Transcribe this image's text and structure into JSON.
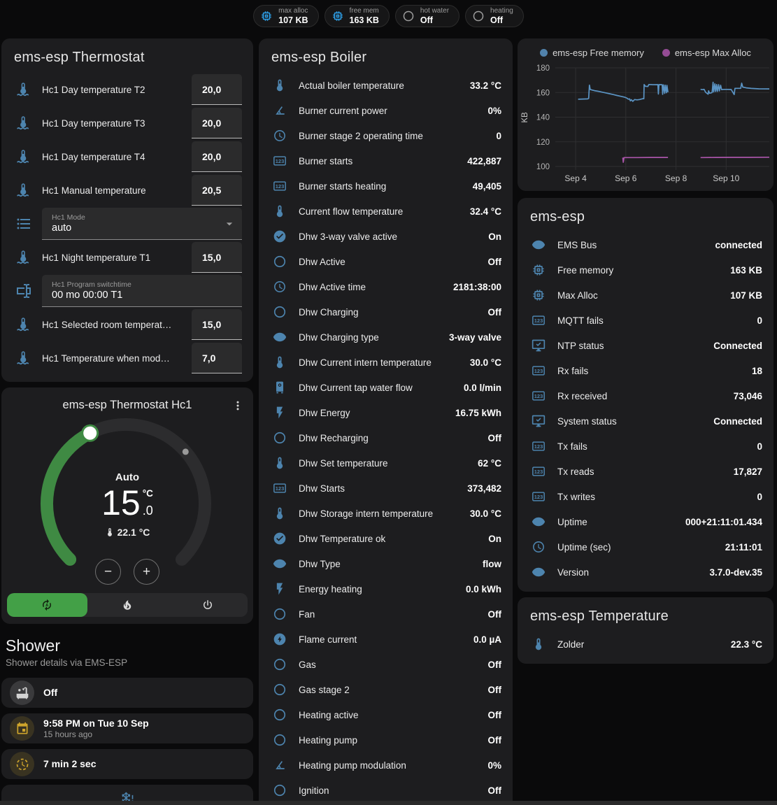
{
  "colors": {
    "icon_blue": "#4d84ae",
    "badge_blue": "#2d9fe8",
    "amber": "#cfa52c",
    "green": "#43a047",
    "arc_green": "#3f8a43",
    "chart_blue": "#5b94c4",
    "chart_purple": "#aa55aa"
  },
  "header": {
    "badges": [
      {
        "icon": "memory",
        "icon_color": "#2d9fe8",
        "label": "max alloc",
        "value": "107 KB"
      },
      {
        "icon": "memory",
        "icon_color": "#2d9fe8",
        "label": "free mem",
        "value": "163 KB"
      },
      {
        "icon": "circle",
        "icon_color": "#9e9e9e",
        "label": "hot water",
        "value": "Off"
      },
      {
        "icon": "circle",
        "icon_color": "#9e9e9e",
        "label": "heating",
        "value": "Off"
      }
    ]
  },
  "thermostat": {
    "title": "ems-esp Thermostat",
    "rows": [
      {
        "type": "number",
        "icon": "coolant-thermometer",
        "label": "Hc1 Day temperature T2",
        "value": "20,0"
      },
      {
        "type": "number",
        "icon": "coolant-thermometer",
        "label": "Hc1 Day temperature T3",
        "value": "20,0"
      },
      {
        "type": "number",
        "icon": "coolant-thermometer",
        "label": "Hc1 Day temperature T4",
        "value": "20,0"
      },
      {
        "type": "number",
        "icon": "coolant-thermometer",
        "label": "Hc1 Manual temperature",
        "value": "20,5"
      },
      {
        "type": "select",
        "icon": "format-list-bulleted",
        "label": "Hc1 Mode",
        "value": "auto"
      },
      {
        "type": "number",
        "icon": "coolant-thermometer",
        "label": "Hc1 Night temperature T1",
        "value": "15,0"
      },
      {
        "type": "textfield",
        "icon": "form-textbox",
        "label": "Hc1 Program switchtime",
        "value": "00 mo 00:00 T1"
      },
      {
        "type": "number",
        "icon": "coolant-thermometer",
        "label": "Hc1 Selected room temperat…",
        "value": "15,0"
      },
      {
        "type": "number",
        "icon": "coolant-thermometer",
        "label": "Hc1 Temperature when mod…",
        "value": "7,0"
      }
    ]
  },
  "dial": {
    "title": "ems-esp Thermostat Hc1",
    "mode_label": "Auto",
    "target_temp": "15",
    "target_decimal": ".0",
    "unit": "°C",
    "current_temp": "22.1 °C",
    "decrease_label": "−",
    "increase_label": "+",
    "modes": [
      {
        "icon": "auto-mode",
        "name": "auto",
        "active": true
      },
      {
        "icon": "fire",
        "name": "heat",
        "active": false
      },
      {
        "icon": "power",
        "name": "off",
        "active": false
      }
    ]
  },
  "shower": {
    "title": "Shower",
    "subtitle": "Shower details via EMS-ESP",
    "cards": [
      {
        "icon": "bathtub",
        "style": "gray",
        "text": "Off",
        "subtext": ""
      },
      {
        "icon": "calendar",
        "style": "amber",
        "text": "9:58 PM on Tue 10 Sep",
        "subtext": "15 hours ago"
      },
      {
        "icon": "progress-clock",
        "style": "amber",
        "text": "7 min 2 sec",
        "subtext": ""
      },
      {
        "icon": "snowflake-alert",
        "style": "center",
        "text": "",
        "subtext": ""
      }
    ]
  },
  "boiler": {
    "title": "ems-esp Boiler",
    "rows": [
      {
        "icon": "thermometer",
        "label": "Actual boiler temperature",
        "value": "33.2 °C"
      },
      {
        "icon": "gauge",
        "label": "Burner current power",
        "value": "0%"
      },
      {
        "icon": "clock",
        "label": "Burner stage 2 operating time",
        "value": "0"
      },
      {
        "icon": "counter",
        "label": "Burner starts",
        "value": "422,887"
      },
      {
        "icon": "counter",
        "label": "Burner starts heating",
        "value": "49,405"
      },
      {
        "icon": "thermometer",
        "label": "Current flow temperature",
        "value": "32.4 °C"
      },
      {
        "icon": "check-circle",
        "label": "Dhw 3-way valve active",
        "value": "On"
      },
      {
        "icon": "circle",
        "label": "Dhw Active",
        "value": "Off"
      },
      {
        "icon": "clock",
        "label": "Dhw Active time",
        "value": "2181:38:00"
      },
      {
        "icon": "circle",
        "label": "Dhw Charging",
        "value": "Off"
      },
      {
        "icon": "eye",
        "label": "Dhw Charging type",
        "value": "3-way valve"
      },
      {
        "icon": "thermometer",
        "label": "Dhw Current intern temperature",
        "value": "30.0 °C"
      },
      {
        "icon": "water-boiler",
        "label": "Dhw Current tap water flow",
        "value": "0.0 l/min"
      },
      {
        "icon": "flash",
        "label": "Dhw Energy",
        "value": "16.75 kWh"
      },
      {
        "icon": "circle",
        "label": "Dhw Recharging",
        "value": "Off"
      },
      {
        "icon": "thermometer",
        "label": "Dhw Set temperature",
        "value": "62 °C"
      },
      {
        "icon": "counter",
        "label": "Dhw Starts",
        "value": "373,482"
      },
      {
        "icon": "thermometer",
        "label": "Dhw Storage intern temperature",
        "value": "30.0 °C"
      },
      {
        "icon": "check-circle",
        "label": "Dhw Temperature ok",
        "value": "On"
      },
      {
        "icon": "eye",
        "label": "Dhw Type",
        "value": "flow"
      },
      {
        "icon": "flash",
        "label": "Energy heating",
        "value": "0.0 kWh"
      },
      {
        "icon": "circle",
        "label": "Fan",
        "value": "Off"
      },
      {
        "icon": "flash-circle",
        "label": "Flame current",
        "value": "0.0 µA"
      },
      {
        "icon": "circle",
        "label": "Gas",
        "value": "Off"
      },
      {
        "icon": "circle",
        "label": "Gas stage 2",
        "value": "Off"
      },
      {
        "icon": "circle",
        "label": "Heating active",
        "value": "Off"
      },
      {
        "icon": "circle",
        "label": "Heating pump",
        "value": "Off"
      },
      {
        "icon": "gauge",
        "label": "Heating pump modulation",
        "value": "0%"
      },
      {
        "icon": "circle",
        "label": "Ignition",
        "value": "Off"
      }
    ]
  },
  "chart_data": {
    "type": "line",
    "title": "",
    "legend_position": "top",
    "grid": true,
    "x_axis": {
      "ticks": [
        "Sep 4",
        "Sep 6",
        "Sep 8",
        "Sep 10"
      ],
      "tick_positions": [
        4,
        6,
        8,
        10
      ],
      "range": [
        3.19,
        11.72
      ]
    },
    "y_axis": {
      "label": "KB",
      "ticks": [
        100,
        120,
        140,
        160,
        180
      ],
      "range": [
        100,
        180
      ]
    },
    "series": [
      {
        "name": "ems-esp Free memory",
        "color": "#5b94c4",
        "segments": [
          [
            [
              4.1,
              154.5
            ],
            [
              4.48,
              154.8
            ],
            [
              4.52,
              155.2
            ],
            [
              4.55,
              166.0
            ],
            [
              4.58,
              162.5
            ],
            [
              4.65,
              162.0
            ],
            [
              4.75,
              161.5
            ],
            [
              4.9,
              161.0
            ],
            [
              5.05,
              160.3
            ],
            [
              5.2,
              159.7
            ],
            [
              5.35,
              159.0
            ],
            [
              5.5,
              158.3
            ],
            [
              5.65,
              157.6
            ],
            [
              5.8,
              156.9
            ],
            [
              5.95,
              156.2
            ],
            [
              6.05,
              155.4
            ],
            [
              6.1,
              154.6
            ],
            [
              6.15,
              154.8
            ],
            [
              6.18,
              153.2
            ],
            [
              6.22,
              154.2
            ],
            [
              6.28,
              152.8
            ],
            [
              6.35,
              154.3
            ],
            [
              6.45,
              154.0
            ],
            [
              6.55,
              154.3
            ],
            [
              6.6,
              154.6
            ],
            [
              6.68,
              155.0
            ],
            [
              6.72,
              154.9
            ],
            [
              6.73,
              166.5
            ],
            [
              6.78,
              165.0
            ],
            [
              6.88,
              164.9
            ],
            [
              6.92,
              166.5
            ],
            [
              7.05,
              166.4
            ],
            [
              7.22,
              166.3
            ],
            [
              7.28,
              166.4
            ],
            [
              7.3,
              158.8
            ],
            [
              7.32,
              166.4
            ],
            [
              7.45,
              166.3
            ],
            [
              7.47,
              158.5
            ],
            [
              7.5,
              166.2
            ],
            [
              7.55,
              159.3
            ],
            [
              7.57,
              166.0
            ],
            [
              7.62,
              159.8
            ],
            [
              7.64,
              165.8
            ],
            [
              7.68,
              160.2
            ]
          ],
          [
            [
              8.98,
              162.6
            ],
            [
              9.05,
              162.3
            ],
            [
              9.12,
              162.6
            ],
            [
              9.18,
              160.2
            ],
            [
              9.22,
              159.6
            ],
            [
              9.28,
              158.6
            ],
            [
              9.3,
              161.4
            ],
            [
              9.34,
              159.4
            ],
            [
              9.4,
              159.7
            ],
            [
              9.44,
              160.0
            ],
            [
              9.48,
              168.3
            ],
            [
              9.5,
              160.4
            ],
            [
              9.55,
              167.0
            ],
            [
              9.58,
              160.8
            ],
            [
              9.62,
              166.5
            ],
            [
              9.65,
              160.9
            ],
            [
              9.7,
              166.4
            ],
            [
              9.73,
              161.3
            ],
            [
              9.78,
              165.9
            ],
            [
              9.82,
              162.3
            ],
            [
              9.9,
              162.5
            ],
            [
              10.05,
              162.5
            ],
            [
              10.2,
              162.4
            ],
            [
              10.32,
              158.3
            ],
            [
              10.35,
              163.4
            ],
            [
              10.5,
              163.4
            ],
            [
              10.58,
              163.4
            ],
            [
              10.62,
              167.6
            ],
            [
              10.66,
              164.4
            ],
            [
              10.8,
              163.8
            ],
            [
              11.0,
              163.3
            ],
            [
              11.3,
              163.0
            ],
            [
              11.72,
              162.9
            ]
          ]
        ]
      },
      {
        "name": "ems-esp Max Alloc",
        "color": "#aa55aa",
        "segments": [
          [
            [
              5.88,
              107.2
            ],
            [
              5.9,
              103.4
            ],
            [
              5.93,
              107.2
            ],
            [
              6.4,
              107.2
            ],
            [
              7.0,
              107.3
            ],
            [
              7.68,
              107.3
            ]
          ],
          [
            [
              8.98,
              107.2
            ],
            [
              9.6,
              107.3
            ],
            [
              10.2,
              107.4
            ],
            [
              10.9,
              107.4
            ],
            [
              11.72,
              107.5
            ]
          ]
        ]
      }
    ]
  },
  "emsesp": {
    "title": "ems-esp",
    "rows": [
      {
        "icon": "eye",
        "label": "EMS Bus",
        "value": "connected"
      },
      {
        "icon": "memory",
        "label": "Free memory",
        "value": "163 KB"
      },
      {
        "icon": "memory",
        "label": "Max Alloc",
        "value": "107 KB"
      },
      {
        "icon": "counter",
        "label": "MQTT fails",
        "value": "0"
      },
      {
        "icon": "monitor-check",
        "label": "NTP status",
        "value": "Connected"
      },
      {
        "icon": "counter",
        "label": "Rx fails",
        "value": "18"
      },
      {
        "icon": "counter",
        "label": "Rx received",
        "value": "73,046"
      },
      {
        "icon": "monitor-check",
        "label": "System status",
        "value": "Connected"
      },
      {
        "icon": "counter",
        "label": "Tx fails",
        "value": "0"
      },
      {
        "icon": "counter",
        "label": "Tx reads",
        "value": "17,827"
      },
      {
        "icon": "counter",
        "label": "Tx writes",
        "value": "0"
      },
      {
        "icon": "eye",
        "label": "Uptime",
        "value": "000+21:11:01.434"
      },
      {
        "icon": "clock",
        "label": "Uptime (sec)",
        "value": "21:11:01"
      },
      {
        "icon": "eye",
        "label": "Version",
        "value": "3.7.0-dev.35"
      }
    ]
  },
  "temperature": {
    "title": "ems-esp Temperature",
    "rows": [
      {
        "icon": "thermometer",
        "label": "Zolder",
        "value": "22.3 °C"
      }
    ]
  }
}
